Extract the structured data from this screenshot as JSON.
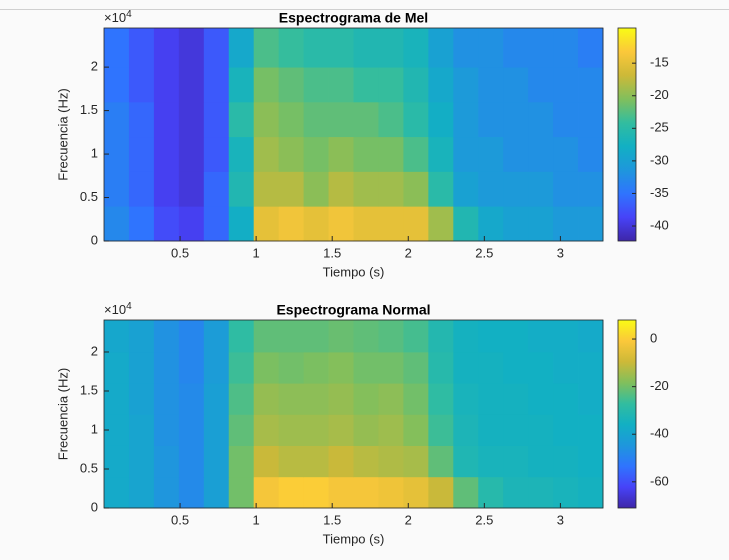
{
  "chart_data": [
    {
      "type": "heatmap",
      "title": "Espectrograma de Mel",
      "xlabel": "Tiempo (s)",
      "ylabel": "Frecuencia (Hz)",
      "y_multiplier": {
        "base": "×10",
        "exponent": "4"
      },
      "xlim": [
        0,
        3.28
      ],
      "xticks": [
        0.5,
        1,
        1.5,
        2,
        2.5,
        3
      ],
      "ylim": [
        0,
        24500
      ],
      "yticks": [
        {
          "value": 0,
          "label": "0"
        },
        {
          "value": 5000,
          "label": "0.5"
        },
        {
          "value": 10000,
          "label": "1"
        },
        {
          "value": 15000,
          "label": "1.5"
        },
        {
          "value": 20000,
          "label": "2"
        }
      ],
      "xbins": [
        0,
        0.164,
        0.328,
        0.492,
        0.656,
        0.82,
        0.984,
        1.148,
        1.312,
        1.476,
        1.64,
        1.804,
        1.968,
        2.132,
        2.296,
        2.46,
        2.624,
        2.788,
        2.952,
        3.116,
        3.28
      ],
      "ybins": [
        0,
        4000,
        8000,
        12000,
        16000,
        20000,
        24500
      ],
      "z": [
        [
          -33,
          -35,
          -38,
          -39,
          -36,
          -28,
          -15,
          -14,
          -15,
          -14,
          -15,
          -15,
          -15,
          -19,
          -26,
          -29,
          -30,
          -30,
          -31,
          -31
        ],
        [
          -34,
          -36,
          -39,
          -40,
          -36,
          -26,
          -18,
          -18,
          -20,
          -18,
          -19,
          -19,
          -20,
          -25,
          -30,
          -31,
          -31,
          -31,
          -32,
          -32
        ],
        [
          -34,
          -36,
          -39,
          -40,
          -37,
          -27,
          -19,
          -20,
          -21,
          -20,
          -21,
          -21,
          -23,
          -27,
          -31,
          -31,
          -32,
          -32,
          -32,
          -33
        ],
        [
          -34,
          -36,
          -39,
          -40,
          -37,
          -25,
          -20,
          -21,
          -22,
          -22,
          -22,
          -23,
          -25,
          -28,
          -31,
          -32,
          -32,
          -32,
          -33,
          -33
        ],
        [
          -35,
          -37,
          -39,
          -40,
          -37,
          -27,
          -21,
          -22,
          -23,
          -23,
          -24,
          -24,
          -26,
          -29,
          -31,
          -32,
          -32,
          -33,
          -33,
          -33
        ],
        [
          -35,
          -37,
          -39,
          -40,
          -37,
          -29,
          -23,
          -24,
          -25,
          -25,
          -26,
          -26,
          -27,
          -30,
          -32,
          -32,
          -33,
          -33,
          -33,
          -34
        ]
      ],
      "clim": [
        -42.3,
        -9.6
      ],
      "cticks": [
        -15,
        -20,
        -25,
        -30,
        -35,
        -40
      ],
      "colormap": [
        "#3e26a8",
        "#4743f8",
        "#2f74fe",
        "#1e97dc",
        "#12b0c3",
        "#32bd9f",
        "#81bf5c",
        "#cdb938",
        "#fbc83a",
        "#f9fb15"
      ]
    },
    {
      "type": "heatmap",
      "title": "Espectrograma Normal",
      "xlabel": "Tiempo (s)",
      "ylabel": "Frecuencia (Hz)",
      "y_multiplier": {
        "base": "×10",
        "exponent": "4"
      },
      "xlim": [
        0,
        3.28
      ],
      "xticks": [
        0.5,
        1,
        1.5,
        2,
        2.5,
        3
      ],
      "ylim": [
        0,
        24100
      ],
      "yticks": [
        {
          "value": 0,
          "label": "0"
        },
        {
          "value": 5000,
          "label": "0.5"
        },
        {
          "value": 10000,
          "label": "1"
        },
        {
          "value": 15000,
          "label": "1.5"
        },
        {
          "value": 20000,
          "label": "2"
        }
      ],
      "xbins": [
        0,
        0.164,
        0.328,
        0.492,
        0.656,
        0.82,
        0.984,
        1.148,
        1.312,
        1.476,
        1.64,
        1.804,
        1.968,
        2.132,
        2.296,
        2.46,
        2.624,
        2.788,
        2.952,
        3.116,
        3.28
      ],
      "ybins": [
        0,
        4000,
        8000,
        12000,
        16000,
        20000,
        24100
      ],
      "z": [
        [
          -38,
          -40,
          -45,
          -48,
          -42,
          -20,
          -2,
          0,
          0,
          -2,
          -2,
          -3,
          -5,
          -10,
          -22,
          -30,
          -33,
          -33,
          -34,
          -35
        ],
        [
          -38,
          -40,
          -45,
          -48,
          -42,
          -20,
          -10,
          -12,
          -12,
          -10,
          -12,
          -13,
          -14,
          -22,
          -32,
          -34,
          -34,
          -35,
          -35,
          -36
        ],
        [
          -38,
          -40,
          -46,
          -48,
          -42,
          -22,
          -14,
          -15,
          -15,
          -14,
          -16,
          -15,
          -18,
          -26,
          -33,
          -35,
          -35,
          -35,
          -36,
          -36
        ],
        [
          -38,
          -41,
          -46,
          -48,
          -42,
          -24,
          -16,
          -17,
          -17,
          -16,
          -18,
          -17,
          -20,
          -28,
          -34,
          -35,
          -35,
          -36,
          -36,
          -37
        ],
        [
          -38,
          -41,
          -46,
          -49,
          -43,
          -26,
          -19,
          -20,
          -19,
          -18,
          -20,
          -20,
          -22,
          -30,
          -35,
          -35,
          -36,
          -36,
          -37,
          -37
        ],
        [
          -39,
          -41,
          -46,
          -49,
          -43,
          -28,
          -22,
          -22,
          -22,
          -21,
          -22,
          -23,
          -25,
          -31,
          -35,
          -36,
          -36,
          -37,
          -37,
          -38
        ]
      ],
      "clim": [
        -71,
        8
      ],
      "cticks": [
        0,
        -20,
        -40,
        -60
      ],
      "colormap": [
        "#3e26a8",
        "#4743f8",
        "#2f74fe",
        "#1e97dc",
        "#12b0c3",
        "#32bd9f",
        "#81bf5c",
        "#cdb938",
        "#fbc83a",
        "#f9fb15"
      ]
    }
  ]
}
